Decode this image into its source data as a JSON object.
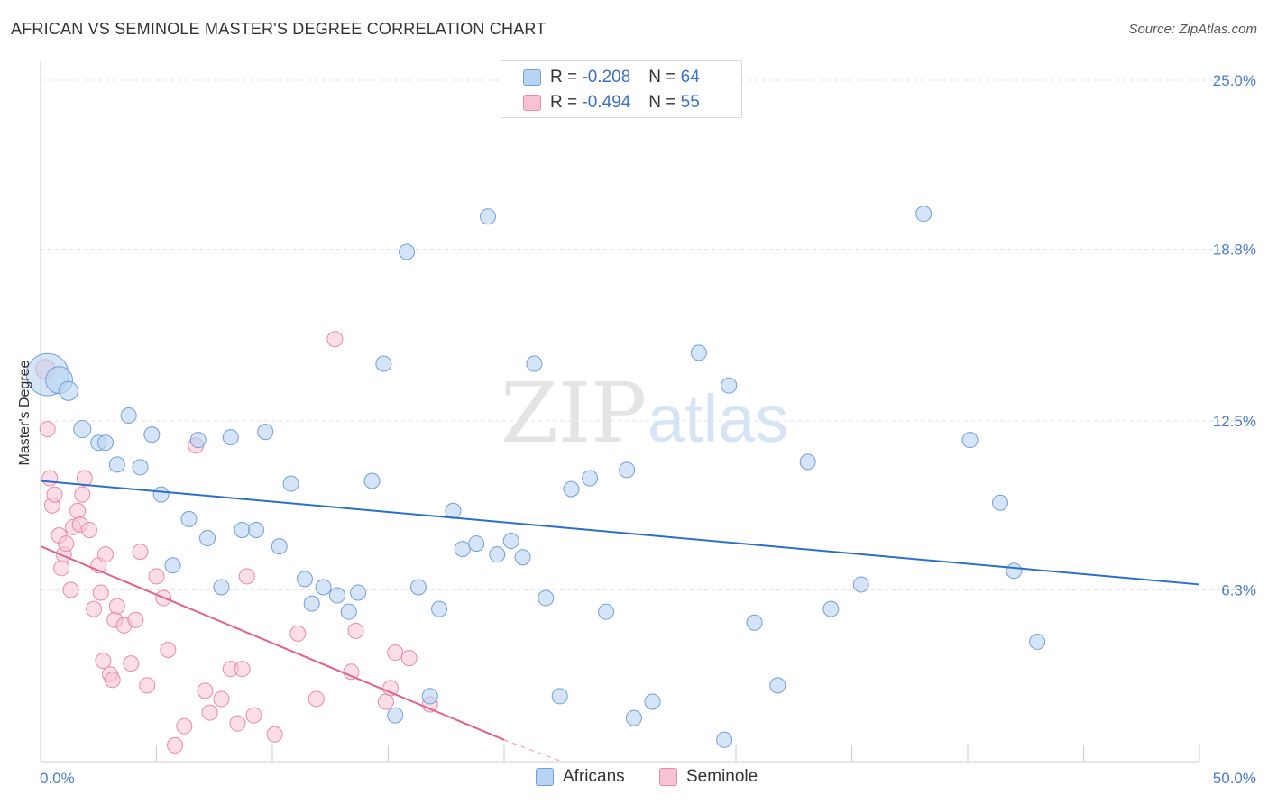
{
  "title": "AFRICAN VS SEMINOLE MASTER'S DEGREE CORRELATION CHART",
  "source": "Source: ZipAtlas.com",
  "watermark": {
    "zip": "ZIP",
    "atlas": "atlas"
  },
  "colors": {
    "blue_fill": "#b9d3f2",
    "blue_stroke": "#6f9fda",
    "blue_line": "#2a6fcc",
    "pink_fill": "#f7c3d3",
    "pink_stroke": "#e88aa8",
    "pink_line": "#e06090",
    "tick_text": "#4a7cc7",
    "grid": "#e2e2e2"
  },
  "legend": {
    "rows": [
      {
        "r_label": "R =",
        "r_value": "-0.208",
        "n_label": "N =",
        "n_value": "64"
      },
      {
        "r_label": "R =",
        "r_value": "-0.494",
        "n_label": "N =",
        "n_value": "55"
      }
    ]
  },
  "bottom_legend": [
    "Africans",
    "Seminole"
  ],
  "chart_data": {
    "type": "scatter",
    "title": "AFRICAN VS SEMINOLE MASTER'S DEGREE CORRELATION CHART",
    "xlabel": "",
    "ylabel": "Master's Degree",
    "xlim": [
      0,
      50
    ],
    "ylim": [
      0,
      25.0
    ],
    "y_ticks": [
      6.3,
      12.5,
      18.8,
      25.0
    ],
    "y_tick_labels": [
      "6.3%",
      "12.5%",
      "18.8%",
      "25.0%"
    ],
    "x_tick_labels": [
      "0.0%",
      "50.0%"
    ],
    "grid": true,
    "legend_position": "top-center",
    "series": [
      {
        "name": "Africans",
        "r": -0.208,
        "n": 64,
        "trend": {
          "x": [
            0,
            50
          ],
          "y": [
            10.3,
            6.5
          ]
        },
        "points": [
          [
            0.3,
            14.2,
            2.2
          ],
          [
            0.8,
            14.0,
            1.4
          ],
          [
            1.2,
            13.6,
            1.0
          ],
          [
            1.8,
            12.2,
            0.9
          ],
          [
            2.5,
            11.7,
            0.8
          ],
          [
            2.8,
            11.7,
            0.8
          ],
          [
            3.3,
            10.9,
            0.8
          ],
          [
            3.8,
            12.7,
            0.8
          ],
          [
            4.3,
            10.8,
            0.8
          ],
          [
            4.8,
            12.0,
            0.8
          ],
          [
            5.2,
            9.8,
            0.8
          ],
          [
            5.7,
            7.2,
            0.8
          ],
          [
            6.4,
            8.9,
            0.8
          ],
          [
            6.8,
            11.8,
            0.8
          ],
          [
            7.2,
            8.2,
            0.8
          ],
          [
            7.8,
            6.4,
            0.8
          ],
          [
            8.2,
            11.9,
            0.8
          ],
          [
            8.7,
            8.5,
            0.8
          ],
          [
            9.3,
            8.5,
            0.8
          ],
          [
            9.7,
            12.1,
            0.8
          ],
          [
            10.3,
            7.9,
            0.8
          ],
          [
            10.8,
            10.2,
            0.8
          ],
          [
            11.4,
            6.7,
            0.8
          ],
          [
            11.7,
            5.8,
            0.8
          ],
          [
            12.2,
            6.4,
            0.8
          ],
          [
            12.8,
            6.1,
            0.8
          ],
          [
            13.3,
            5.5,
            0.8
          ],
          [
            13.7,
            6.2,
            0.8
          ],
          [
            14.3,
            10.3,
            0.8
          ],
          [
            14.8,
            14.6,
            0.8
          ],
          [
            15.3,
            1.7,
            0.8
          ],
          [
            15.8,
            18.7,
            0.8
          ],
          [
            16.3,
            6.4,
            0.8
          ],
          [
            16.8,
            2.4,
            0.8
          ],
          [
            17.2,
            5.6,
            0.8
          ],
          [
            17.8,
            9.2,
            0.8
          ],
          [
            18.2,
            7.8,
            0.8
          ],
          [
            18.8,
            8.0,
            0.8
          ],
          [
            19.3,
            20.0,
            0.8
          ],
          [
            19.7,
            7.6,
            0.8
          ],
          [
            20.3,
            8.1,
            0.8
          ],
          [
            20.8,
            7.5,
            0.8
          ],
          [
            21.3,
            14.6,
            0.8
          ],
          [
            21.8,
            6.0,
            0.8
          ],
          [
            22.4,
            2.4,
            0.8
          ],
          [
            22.9,
            10.0,
            0.8
          ],
          [
            23.7,
            10.4,
            0.8
          ],
          [
            24.4,
            5.5,
            0.8
          ],
          [
            25.3,
            10.7,
            0.8
          ],
          [
            25.6,
            1.6,
            0.8
          ],
          [
            26.4,
            2.2,
            0.8
          ],
          [
            28.4,
            15.0,
            0.8
          ],
          [
            29.5,
            0.8,
            0.8
          ],
          [
            29.7,
            13.8,
            0.8
          ],
          [
            30.8,
            5.1,
            0.8
          ],
          [
            31.8,
            2.8,
            0.8
          ],
          [
            33.1,
            11.0,
            0.8
          ],
          [
            34.1,
            5.6,
            0.8
          ],
          [
            35.4,
            6.5,
            0.8
          ],
          [
            38.1,
            20.1,
            0.8
          ],
          [
            40.1,
            11.8,
            0.8
          ],
          [
            41.4,
            9.5,
            0.8
          ],
          [
            42.0,
            7.0,
            0.8
          ],
          [
            43.0,
            4.4,
            0.8
          ]
        ]
      },
      {
        "name": "Seminole",
        "r": -0.494,
        "n": 55,
        "trend": {
          "x": [
            0,
            20
          ],
          "y": [
            7.9,
            0.8
          ]
        },
        "trend_dashed": {
          "x": [
            20,
            22.5
          ],
          "y": [
            0.8,
            0.0
          ]
        },
        "points": [
          [
            0.2,
            14.4,
            1.0
          ],
          [
            0.3,
            12.2,
            0.8
          ],
          [
            0.4,
            10.4,
            0.8
          ],
          [
            0.5,
            9.4,
            0.8
          ],
          [
            0.6,
            9.8,
            0.8
          ],
          [
            0.8,
            8.3,
            0.8
          ],
          [
            0.9,
            7.1,
            0.8
          ],
          [
            1.0,
            7.6,
            0.8
          ],
          [
            1.1,
            8.0,
            0.8
          ],
          [
            1.3,
            6.3,
            0.8
          ],
          [
            1.4,
            8.6,
            0.8
          ],
          [
            1.6,
            9.2,
            0.8
          ],
          [
            1.7,
            8.7,
            0.8
          ],
          [
            1.8,
            9.8,
            0.8
          ],
          [
            1.9,
            10.4,
            0.8
          ],
          [
            2.1,
            8.5,
            0.8
          ],
          [
            2.3,
            5.6,
            0.8
          ],
          [
            2.5,
            7.2,
            0.8
          ],
          [
            2.6,
            6.2,
            0.8
          ],
          [
            2.7,
            3.7,
            0.8
          ],
          [
            2.8,
            7.6,
            0.8
          ],
          [
            3.0,
            3.2,
            0.8
          ],
          [
            3.1,
            3.0,
            0.8
          ],
          [
            3.2,
            5.2,
            0.8
          ],
          [
            3.3,
            5.7,
            0.8
          ],
          [
            3.6,
            5.0,
            0.8
          ],
          [
            3.9,
            3.6,
            0.8
          ],
          [
            4.1,
            5.2,
            0.8
          ],
          [
            4.3,
            7.7,
            0.8
          ],
          [
            4.6,
            2.8,
            0.8
          ],
          [
            5.0,
            6.8,
            0.8
          ],
          [
            5.3,
            6.0,
            0.8
          ],
          [
            5.5,
            4.1,
            0.8
          ],
          [
            5.8,
            0.6,
            0.8
          ],
          [
            6.2,
            1.3,
            0.8
          ],
          [
            6.7,
            11.6,
            0.8
          ],
          [
            7.1,
            2.6,
            0.8
          ],
          [
            7.3,
            1.8,
            0.8
          ],
          [
            7.8,
            2.3,
            0.8
          ],
          [
            8.2,
            3.4,
            0.8
          ],
          [
            8.5,
            1.4,
            0.8
          ],
          [
            8.7,
            3.4,
            0.8
          ],
          [
            8.9,
            6.8,
            0.8
          ],
          [
            9.2,
            1.7,
            0.8
          ],
          [
            10.1,
            1.0,
            0.8
          ],
          [
            11.1,
            4.7,
            0.8
          ],
          [
            11.9,
            2.3,
            0.8
          ],
          [
            12.7,
            15.5,
            0.8
          ],
          [
            13.4,
            3.3,
            0.8
          ],
          [
            13.6,
            4.8,
            0.8
          ],
          [
            14.9,
            2.2,
            0.8
          ],
          [
            15.1,
            2.7,
            0.8
          ],
          [
            15.3,
            4.0,
            0.8
          ],
          [
            15.9,
            3.8,
            0.8
          ],
          [
            16.8,
            2.1,
            0.8
          ]
        ]
      }
    ]
  }
}
